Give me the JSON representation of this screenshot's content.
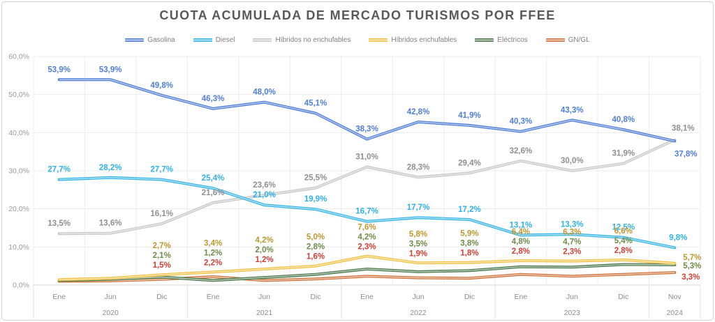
{
  "title": "CUOTA ACUMULADA DE MERCADO TURISMOS POR FFEE",
  "chart_data": {
    "type": "line",
    "title": "CUOTA ACUMULADA DE MERCADO TURISMOS POR FFEE",
    "xlabel": "",
    "ylabel": "",
    "grid": true,
    "legend_position": "top",
    "x_categories": [
      "Ene",
      "Jun",
      "Dic",
      "Ene",
      "Jun",
      "Dic",
      "Ene",
      "Jun",
      "Dic",
      "Ene",
      "Jun",
      "Dic",
      "Nov"
    ],
    "year_groups": [
      {
        "label": "2020",
        "count": 3
      },
      {
        "label": "2021",
        "count": 3
      },
      {
        "label": "2022",
        "count": 3
      },
      {
        "label": "2023",
        "count": 3
      },
      {
        "label": "2024",
        "count": 1
      }
    ],
    "y_axis": {
      "min": 0,
      "max": 60,
      "tick_step": 10,
      "tick_labels": [
        "0,0%",
        "10,0%",
        "20,0%",
        "30,0%",
        "40,0%",
        "50,0%",
        "60,0%"
      ]
    },
    "series": [
      {
        "name": "Gasolina",
        "color": "#4f7fd9",
        "label_color": "#4f7fd9",
        "values": [
          53.9,
          53.9,
          49.8,
          46.3,
          48.0,
          45.1,
          38.3,
          42.8,
          41.9,
          40.3,
          43.3,
          40.8,
          37.8
        ],
        "labels": [
          "53,9%",
          "53,9%",
          "49,8%",
          "46,3%",
          "48,0%",
          "45,1%",
          "38,3%",
          "42,8%",
          "41,9%",
          "40,3%",
          "43,3%",
          "40,8%",
          "37,8%"
        ]
      },
      {
        "name": "Diesel",
        "color": "#38b6e8",
        "label_color": "#2eb1e8",
        "values": [
          27.7,
          28.2,
          27.7,
          25.4,
          21.0,
          19.9,
          16.7,
          17.7,
          17.2,
          13.1,
          13.3,
          12.5,
          9.8
        ],
        "labels": [
          "27,7%",
          "28,2%",
          "27,7%",
          "25,4%",
          "21,0%",
          "19,9%",
          "16,7%",
          "17,7%",
          "17,2%",
          "13,1%",
          "13,3%",
          "12,5%",
          "9,8%"
        ]
      },
      {
        "name": "Híbridos no enchufables",
        "color": "#c9c9c9",
        "label_color": "#8f8f8f",
        "values": [
          13.5,
          13.6,
          16.1,
          21.6,
          23.6,
          25.5,
          31.0,
          28.3,
          29.4,
          32.6,
          30.0,
          31.9,
          38.1
        ],
        "labels": [
          "13,5%",
          "13,6%",
          "16,1%",
          "21,6%",
          "23,6%",
          "25,5%",
          "31,0%",
          "28,3%",
          "29,4%",
          "32,6%",
          "30,0%",
          "31,9%",
          "38,1%"
        ]
      },
      {
        "name": "Híbridos enchufables",
        "color": "#f2c245",
        "label_color": "#bf9730",
        "values": [
          1.4,
          1.8,
          2.7,
          3.4,
          4.2,
          5.0,
          7.6,
          5.8,
          5.9,
          6.4,
          6.3,
          6.6,
          5.7
        ],
        "labels": [
          null,
          null,
          "2,7%",
          "3,4%",
          "4,2%",
          "5,0%",
          "7,6%",
          "5,8%",
          "5,9%",
          "6,4%",
          "6,3%",
          "6,6%",
          "5,7%"
        ]
      },
      {
        "name": "Eléctricos",
        "color": "#4e7b50",
        "label_color": "#6d8c47",
        "values": [
          1.2,
          1.5,
          2.1,
          1.2,
          2.0,
          2.8,
          4.2,
          3.5,
          3.8,
          4.8,
          4.7,
          5.4,
          5.3
        ],
        "labels": [
          null,
          null,
          "2,1%",
          "1,2%",
          "2,0%",
          "2,8%",
          "4,2%",
          "3,5%",
          "3,8%",
          "4,8%",
          "4,7%",
          "5,4%",
          "5,3%"
        ]
      },
      {
        "name": "GN/GL",
        "color": "#d1763f",
        "label_color": "#cf3f34",
        "values": [
          1.0,
          1.1,
          1.5,
          2.2,
          1.2,
          1.6,
          2.3,
          1.9,
          1.8,
          2.8,
          2.3,
          2.8,
          3.3
        ],
        "labels": [
          null,
          null,
          "1,5%",
          "2,2%",
          "1,2%",
          "1,6%",
          "2,3%",
          "1,9%",
          "1,8%",
          "2,8%",
          "2,3%",
          "2,8%",
          "3,3%"
        ]
      }
    ]
  },
  "style_colors": {
    "title_text": "#595959",
    "grid_line": "#ececec",
    "zero_line": "#d6d6d6",
    "year_separator": "#e0e0e0",
    "axis_text": "#8c8c8c"
  }
}
